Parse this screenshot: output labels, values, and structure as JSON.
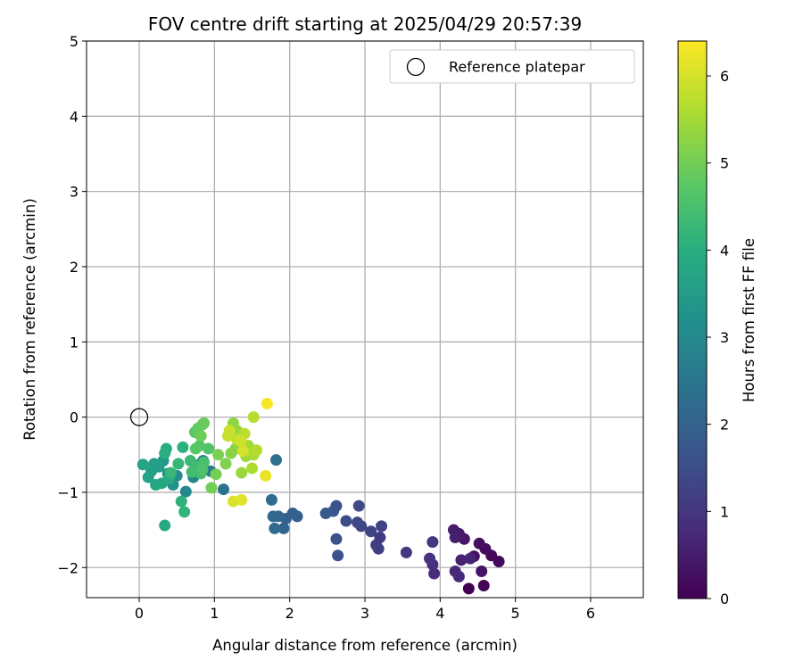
{
  "chart_data": {
    "type": "scatter",
    "title": "FOV centre drift starting at 2025/04/29 20:57:39",
    "xlabel": "Angular distance from reference (arcmin)",
    "ylabel": "Rotation from reference (arcmin)",
    "xlim": [
      -0.7,
      6.7
    ],
    "ylim": [
      -2.4,
      5.0
    ],
    "xticks": [
      0,
      1,
      2,
      3,
      4,
      5,
      6
    ],
    "yticks": [
      -2,
      -1,
      0,
      1,
      2,
      3,
      4,
      5
    ],
    "grid": true,
    "colormap": "viridis",
    "colorbar": {
      "label": "Hours from first FF file",
      "range": [
        0,
        6.4
      ],
      "ticks": [
        0,
        1,
        2,
        3,
        4,
        5,
        6
      ]
    },
    "legend": {
      "placement": "top-right",
      "entries": [
        {
          "label": "Reference platepar",
          "marker": "open-circle",
          "color": "#000000"
        }
      ]
    },
    "reference_point": {
      "x": 0,
      "y": 0
    },
    "points": [
      {
        "x": 4.38,
        "y": -2.28,
        "t": 0.0
      },
      {
        "x": 4.58,
        "y": -2.24,
        "t": 0.05
      },
      {
        "x": 4.78,
        "y": -1.92,
        "t": 0.1
      },
      {
        "x": 4.68,
        "y": -1.84,
        "t": 0.15
      },
      {
        "x": 4.6,
        "y": -1.75,
        "t": 0.2
      },
      {
        "x": 4.52,
        "y": -1.68,
        "t": 0.25
      },
      {
        "x": 4.45,
        "y": -1.85,
        "t": 0.3
      },
      {
        "x": 4.55,
        "y": -2.05,
        "t": 0.35
      },
      {
        "x": 4.32,
        "y": -1.62,
        "t": 0.4
      },
      {
        "x": 4.25,
        "y": -1.55,
        "t": 0.45
      },
      {
        "x": 4.18,
        "y": -1.5,
        "t": 0.5
      },
      {
        "x": 4.2,
        "y": -1.6,
        "t": 0.55
      },
      {
        "x": 4.28,
        "y": -1.9,
        "t": 0.6
      },
      {
        "x": 4.4,
        "y": -1.88,
        "t": 0.65
      },
      {
        "x": 4.2,
        "y": -2.05,
        "t": 0.7
      },
      {
        "x": 4.25,
        "y": -2.12,
        "t": 0.75
      },
      {
        "x": 3.92,
        "y": -2.08,
        "t": 0.8
      },
      {
        "x": 3.9,
        "y": -1.96,
        "t": 0.85
      },
      {
        "x": 3.86,
        "y": -1.88,
        "t": 0.9
      },
      {
        "x": 3.9,
        "y": -1.66,
        "t": 0.95
      },
      {
        "x": 3.55,
        "y": -1.8,
        "t": 1.0
      },
      {
        "x": 3.2,
        "y": -1.6,
        "t": 1.1
      },
      {
        "x": 3.15,
        "y": -1.7,
        "t": 1.15
      },
      {
        "x": 3.18,
        "y": -1.75,
        "t": 1.2
      },
      {
        "x": 3.22,
        "y": -1.45,
        "t": 1.25
      },
      {
        "x": 3.08,
        "y": -1.52,
        "t": 1.3
      },
      {
        "x": 2.95,
        "y": -1.45,
        "t": 1.35
      },
      {
        "x": 2.9,
        "y": -1.4,
        "t": 1.4
      },
      {
        "x": 2.92,
        "y": -1.18,
        "t": 1.45
      },
      {
        "x": 2.75,
        "y": -1.38,
        "t": 1.5
      },
      {
        "x": 2.62,
        "y": -1.62,
        "t": 1.55
      },
      {
        "x": 2.64,
        "y": -1.84,
        "t": 1.6
      },
      {
        "x": 2.62,
        "y": -1.18,
        "t": 1.65
      },
      {
        "x": 2.58,
        "y": -1.25,
        "t": 1.7
      },
      {
        "x": 2.48,
        "y": -1.28,
        "t": 1.8
      },
      {
        "x": 2.1,
        "y": -1.32,
        "t": 1.9
      },
      {
        "x": 2.04,
        "y": -1.28,
        "t": 1.95
      },
      {
        "x": 1.95,
        "y": -1.35,
        "t": 2.0
      },
      {
        "x": 1.92,
        "y": -1.48,
        "t": 2.05
      },
      {
        "x": 1.85,
        "y": -1.32,
        "t": 2.1
      },
      {
        "x": 1.78,
        "y": -1.32,
        "t": 2.15
      },
      {
        "x": 1.8,
        "y": -1.48,
        "t": 2.2
      },
      {
        "x": 1.76,
        "y": -1.1,
        "t": 2.25
      },
      {
        "x": 1.82,
        "y": -0.57,
        "t": 2.3
      },
      {
        "x": 1.12,
        "y": -0.96,
        "t": 2.45
      },
      {
        "x": 0.95,
        "y": -0.72,
        "t": 2.6
      },
      {
        "x": 0.85,
        "y": -0.58,
        "t": 2.7
      },
      {
        "x": 0.82,
        "y": -0.62,
        "t": 2.8
      },
      {
        "x": 0.72,
        "y": -0.8,
        "t": 2.9
      },
      {
        "x": 0.62,
        "y": -0.99,
        "t": 3.0
      },
      {
        "x": 0.5,
        "y": -0.78,
        "t": 3.1
      },
      {
        "x": 0.45,
        "y": -0.9,
        "t": 3.2
      },
      {
        "x": 0.38,
        "y": -0.75,
        "t": 3.3
      },
      {
        "x": 0.32,
        "y": -0.58,
        "t": 3.4
      },
      {
        "x": 0.26,
        "y": -0.66,
        "t": 3.5
      },
      {
        "x": 0.2,
        "y": -0.62,
        "t": 3.55
      },
      {
        "x": 0.16,
        "y": -0.72,
        "t": 3.6
      },
      {
        "x": 0.12,
        "y": -0.8,
        "t": 3.65
      },
      {
        "x": 0.05,
        "y": -0.63,
        "t": 3.7
      },
      {
        "x": 0.22,
        "y": -0.9,
        "t": 3.75
      },
      {
        "x": 0.3,
        "y": -0.88,
        "t": 3.8
      },
      {
        "x": 0.34,
        "y": -1.44,
        "t": 3.85
      },
      {
        "x": 0.4,
        "y": -0.82,
        "t": 3.9
      },
      {
        "x": 0.36,
        "y": -0.42,
        "t": 3.95
      },
      {
        "x": 0.34,
        "y": -0.48,
        "t": 4.0
      },
      {
        "x": 0.58,
        "y": -0.4,
        "t": 4.05
      },
      {
        "x": 0.56,
        "y": -1.12,
        "t": 4.1
      },
      {
        "x": 0.6,
        "y": -1.26,
        "t": 4.15
      },
      {
        "x": 0.52,
        "y": -0.62,
        "t": 4.2
      },
      {
        "x": 0.42,
        "y": -0.74,
        "t": 4.25
      },
      {
        "x": 0.68,
        "y": -0.58,
        "t": 4.3
      },
      {
        "x": 0.76,
        "y": -0.66,
        "t": 4.35
      },
      {
        "x": 0.7,
        "y": -0.73,
        "t": 4.4
      },
      {
        "x": 0.82,
        "y": -0.75,
        "t": 4.45
      },
      {
        "x": 0.86,
        "y": -0.6,
        "t": 4.5
      },
      {
        "x": 0.84,
        "y": -0.7,
        "t": 4.55
      },
      {
        "x": 0.92,
        "y": -0.42,
        "t": 4.6
      },
      {
        "x": 0.8,
        "y": -0.38,
        "t": 4.65
      },
      {
        "x": 0.75,
        "y": -0.42,
        "t": 4.7
      },
      {
        "x": 0.74,
        "y": -0.2,
        "t": 4.75
      },
      {
        "x": 0.78,
        "y": -0.15,
        "t": 4.8
      },
      {
        "x": 0.84,
        "y": -0.1,
        "t": 4.85
      },
      {
        "x": 0.86,
        "y": -0.08,
        "t": 4.9
      },
      {
        "x": 0.82,
        "y": -0.25,
        "t": 4.95
      },
      {
        "x": 0.96,
        "y": -0.94,
        "t": 5.0
      },
      {
        "x": 1.02,
        "y": -0.76,
        "t": 5.05
      },
      {
        "x": 1.05,
        "y": -0.5,
        "t": 5.1
      },
      {
        "x": 1.15,
        "y": -0.62,
        "t": 5.15
      },
      {
        "x": 1.22,
        "y": -0.48,
        "t": 5.2
      },
      {
        "x": 1.28,
        "y": -0.42,
        "t": 5.25
      },
      {
        "x": 1.25,
        "y": -0.08,
        "t": 5.3
      },
      {
        "x": 1.3,
        "y": -0.18,
        "t": 5.35
      },
      {
        "x": 1.36,
        "y": -0.74,
        "t": 5.4
      },
      {
        "x": 1.42,
        "y": -0.52,
        "t": 5.45
      },
      {
        "x": 1.45,
        "y": -0.38,
        "t": 5.5
      },
      {
        "x": 1.52,
        "y": -0.5,
        "t": 5.55
      },
      {
        "x": 1.5,
        "y": -0.68,
        "t": 5.6
      },
      {
        "x": 1.56,
        "y": -0.44,
        "t": 5.65
      },
      {
        "x": 1.52,
        "y": 0.0,
        "t": 5.7
      },
      {
        "x": 1.4,
        "y": -0.22,
        "t": 5.75
      },
      {
        "x": 1.3,
        "y": -0.3,
        "t": 5.8
      },
      {
        "x": 1.18,
        "y": -0.25,
        "t": 5.85
      },
      {
        "x": 1.2,
        "y": -0.18,
        "t": 5.9
      },
      {
        "x": 1.35,
        "y": -0.32,
        "t": 5.95
      },
      {
        "x": 1.38,
        "y": -0.45,
        "t": 6.0
      },
      {
        "x": 1.25,
        "y": -1.12,
        "t": 6.05
      },
      {
        "x": 1.36,
        "y": -1.1,
        "t": 6.1
      },
      {
        "x": 1.68,
        "y": -0.78,
        "t": 6.2
      },
      {
        "x": 1.7,
        "y": 0.18,
        "t": 6.35
      }
    ]
  }
}
